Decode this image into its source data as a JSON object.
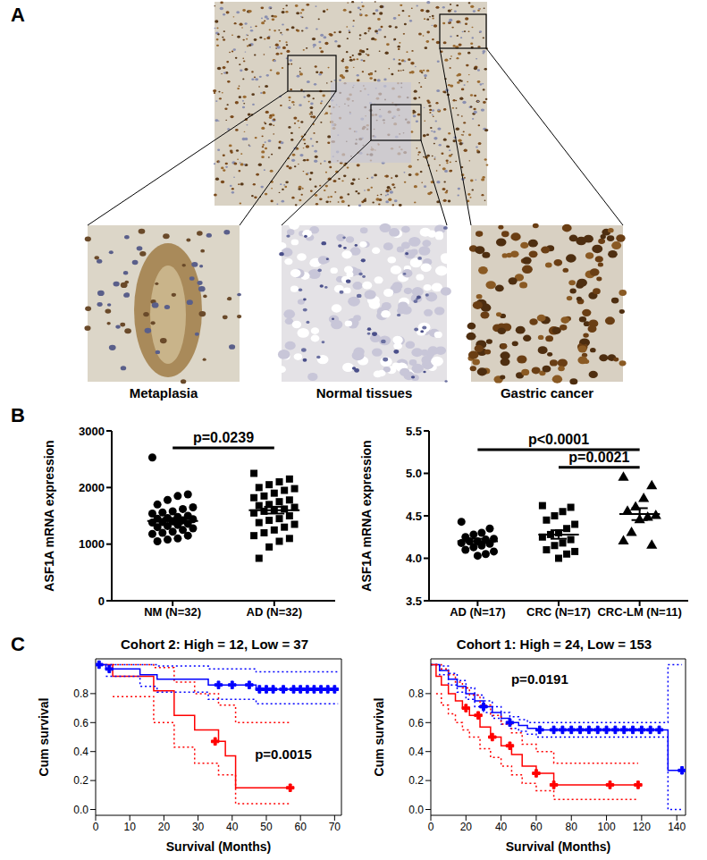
{
  "panel_a": {
    "label": "A",
    "insets": [
      "Metaplasia",
      "Normal tissues",
      "Gastric cancer"
    ]
  },
  "panel_b_label": "B",
  "panel_c_label": "C",
  "chart_data": [
    {
      "type": "dot_plot",
      "y_label": "ASF1A mRNA expression",
      "ylim": [
        0,
        3000
      ],
      "yticks": [
        0,
        1000,
        2000,
        3000
      ],
      "groups": [
        {
          "category": "NM (N=32)",
          "marker": "circle",
          "color": "#000000",
          "mean": 1410,
          "sem": 50,
          "values": [
            2530,
            1880,
            1850,
            1780,
            1700,
            1650,
            1620,
            1580,
            1560,
            1540,
            1500,
            1480,
            1460,
            1450,
            1440,
            1420,
            1400,
            1390,
            1380,
            1360,
            1340,
            1320,
            1300,
            1280,
            1250,
            1220,
            1200,
            1180,
            1150,
            1100,
            1080,
            1050
          ]
        },
        {
          "category": "AD (N=32)",
          "marker": "square",
          "color": "#000000",
          "mean": 1600,
          "sem": 60,
          "values": [
            2250,
            2150,
            2100,
            2050,
            2000,
            1980,
            1950,
            1900,
            1850,
            1820,
            1780,
            1750,
            1700,
            1680,
            1650,
            1620,
            1600,
            1580,
            1550,
            1500,
            1450,
            1420,
            1380,
            1350,
            1300,
            1250,
            1200,
            1150,
            1100,
            1050,
            950,
            750
          ]
        }
      ],
      "comparisons": [
        {
          "text": "p=0.0239",
          "groups": [
            0,
            1
          ],
          "y": 2700
        }
      ]
    },
    {
      "type": "dot_plot",
      "y_label": "ASF1A mRNA expression",
      "ylim": [
        3.5,
        5.5
      ],
      "yticks": [
        3.5,
        {
          "value": 4,
          "label": "4.0"
        },
        4.5,
        {
          "value": 5,
          "label": "5.0"
        },
        5.5
      ],
      "groups": [
        {
          "category": "AD (N=17)",
          "marker": "circle",
          "color": "#000000",
          "mean": 4.2,
          "sem": 0.03,
          "values": [
            4.43,
            4.35,
            4.3,
            4.28,
            4.25,
            4.23,
            4.22,
            4.2,
            4.2,
            4.18,
            4.17,
            4.15,
            4.13,
            4.1,
            4.08,
            4.05,
            4.03
          ]
        },
        {
          "category": "CRC (N=17)",
          "marker": "square",
          "color": "#000000",
          "mean": 4.28,
          "sem": 0.05,
          "values": [
            4.62,
            4.6,
            4.55,
            4.5,
            4.45,
            4.4,
            4.35,
            4.3,
            4.28,
            4.25,
            4.22,
            4.18,
            4.15,
            4.1,
            4.08,
            4.05,
            4.0
          ]
        },
        {
          "category": "CRC-LM (N=11)",
          "marker": "triangle",
          "color": "#000000",
          "mean": 4.52,
          "sem": 0.07,
          "values": [
            4.95,
            4.85,
            4.7,
            4.6,
            4.55,
            4.5,
            4.48,
            4.45,
            4.3,
            4.2,
            4.15
          ]
        }
      ],
      "comparisons": [
        {
          "text": "p<0.0001",
          "groups": [
            0,
            2
          ],
          "y": 5.28
        },
        {
          "text": "p=0.0021",
          "groups": [
            1,
            2
          ],
          "y": 5.07
        }
      ]
    },
    {
      "type": "step",
      "title": "Cohort 2: High = 12, Low = 37",
      "x_label": "Survival (Months)",
      "y_label": "Cum survival",
      "xlim": [
        0,
        72
      ],
      "xticks": [
        0,
        10,
        20,
        30,
        40,
        50,
        60,
        70
      ],
      "ylim": [
        -0.04,
        1.04
      ],
      "yticks": [
        {
          "value": 0,
          "label": "0.0"
        },
        0.2,
        0.4,
        0.6,
        0.8
      ],
      "annotations": [
        {
          "text": "p=0.0015",
          "x": 55,
          "y": 0.38
        }
      ],
      "series": [
        {
          "color": "#ff0000",
          "line_style": "solid",
          "x": [
            0,
            5,
            17,
            23,
            29,
            36,
            38,
            41,
            57
          ],
          "values": [
            1,
            0.92,
            0.82,
            0.65,
            0.55,
            0.47,
            0.37,
            0.15,
            0.15
          ]
        },
        {
          "color": "#ff0000",
          "line_style": "dotted",
          "x": [
            5,
            17,
            23,
            29,
            36,
            41,
            57
          ],
          "values": [
            1,
            0.98,
            0.88,
            0.8,
            0.72,
            0.6,
            0.6
          ]
        },
        {
          "color": "#ff0000",
          "line_style": "dotted",
          "x": [
            5,
            17,
            23,
            29,
            36,
            41,
            57
          ],
          "values": [
            0.78,
            0.6,
            0.43,
            0.32,
            0.24,
            0.04,
            0.04
          ]
        },
        {
          "color": "#0000ff",
          "line_style": "solid",
          "x": [
            0,
            3,
            13,
            18,
            33,
            47,
            71
          ],
          "values": [
            1,
            0.97,
            0.93,
            0.9,
            0.86,
            0.83,
            0.83
          ]
        },
        {
          "color": "#0000ff",
          "line_style": "dotted",
          "x": [
            3,
            13,
            18,
            33,
            47,
            71
          ],
          "values": [
            1,
            1,
            0.99,
            0.97,
            0.95,
            0.95
          ]
        },
        {
          "color": "#0000ff",
          "line_style": "dotted",
          "x": [
            3,
            13,
            18,
            33,
            47,
            71
          ],
          "values": [
            0.92,
            0.85,
            0.81,
            0.76,
            0.73,
            0.73
          ]
        },
        {
          "type": "scatter",
          "marker": "cross",
          "color": "#0000ff",
          "x": [
            1,
            4,
            36,
            40,
            45,
            48,
            50,
            52,
            55,
            58,
            60,
            62,
            64,
            66,
            68,
            70
          ],
          "values": [
            1,
            0.97,
            0.86,
            0.86,
            0.86,
            0.83,
            0.83,
            0.83,
            0.83,
            0.83,
            0.83,
            0.83,
            0.83,
            0.83,
            0.83,
            0.83
          ]
        },
        {
          "type": "scatter",
          "marker": "cross",
          "color": "#ff0000",
          "x": [
            35,
            57
          ],
          "values": [
            0.47,
            0.15
          ]
        }
      ]
    },
    {
      "type": "step",
      "title": "Cohort 1: High = 24, Low = 153",
      "x_label": "Survival (Months)",
      "y_label": "Cum survival",
      "xlim": [
        0,
        145
      ],
      "xticks": [
        0,
        20,
        40,
        60,
        80,
        100,
        120,
        140
      ],
      "ylim": [
        -0.04,
        1.04
      ],
      "yticks": [
        {
          "value": 0,
          "label": "0.0"
        },
        0.2,
        0.4,
        0.6,
        0.8
      ],
      "annotations": [
        {
          "text": "p=0.0191",
          "x": 62,
          "y": 0.9
        }
      ],
      "series": [
        {
          "color": "#0000ff",
          "line_style": "solid",
          "x": [
            0,
            5,
            10,
            15,
            20,
            25,
            30,
            35,
            40,
            45,
            50,
            55,
            60,
            135,
            143
          ],
          "values": [
            1,
            0.96,
            0.9,
            0.85,
            0.8,
            0.75,
            0.71,
            0.67,
            0.63,
            0.6,
            0.58,
            0.56,
            0.55,
            0.27,
            0.27
          ]
        },
        {
          "color": "#0000ff",
          "line_style": "dotted",
          "x": [
            0,
            5,
            10,
            15,
            20,
            25,
            30,
            35,
            40,
            45,
            50,
            55,
            60,
            135,
            143
          ],
          "values": [
            1,
            0.99,
            0.94,
            0.89,
            0.84,
            0.79,
            0.75,
            0.71,
            0.67,
            0.64,
            0.62,
            0.6,
            0.6,
            1,
            1
          ]
        },
        {
          "color": "#0000ff",
          "line_style": "dotted",
          "x": [
            0,
            5,
            10,
            15,
            20,
            25,
            30,
            35,
            40,
            45,
            50,
            55,
            60,
            135,
            143
          ],
          "values": [
            1,
            0.93,
            0.86,
            0.81,
            0.76,
            0.71,
            0.67,
            0.63,
            0.59,
            0.56,
            0.54,
            0.52,
            0.5,
            0,
            0
          ]
        },
        {
          "color": "#ff0000",
          "line_style": "solid",
          "x": [
            0,
            3,
            6,
            10,
            14,
            18,
            22,
            28,
            34,
            40,
            46,
            52,
            60,
            70,
            118
          ],
          "values": [
            1,
            0.92,
            0.86,
            0.8,
            0.75,
            0.7,
            0.65,
            0.57,
            0.5,
            0.44,
            0.38,
            0.3,
            0.25,
            0.17,
            0.17
          ]
        },
        {
          "color": "#ff0000",
          "line_style": "dotted",
          "x": [
            3,
            6,
            10,
            14,
            18,
            22,
            28,
            34,
            40,
            46,
            52,
            60,
            70,
            118
          ],
          "values": [
            1,
            0.97,
            0.93,
            0.88,
            0.84,
            0.79,
            0.72,
            0.65,
            0.59,
            0.53,
            0.45,
            0.4,
            0.32,
            0.32
          ]
        },
        {
          "color": "#ff0000",
          "line_style": "dotted",
          "x": [
            3,
            6,
            10,
            14,
            18,
            22,
            28,
            34,
            40,
            46,
            52,
            60,
            70,
            118
          ],
          "values": [
            0.8,
            0.72,
            0.66,
            0.6,
            0.55,
            0.5,
            0.42,
            0.36,
            0.3,
            0.24,
            0.18,
            0.13,
            0.07,
            0.07
          ]
        },
        {
          "type": "scatter",
          "marker": "cross",
          "color": "#0000ff",
          "x": [
            30,
            45,
            62,
            70,
            75,
            80,
            85,
            90,
            95,
            100,
            105,
            110,
            115,
            120,
            125,
            130,
            143
          ],
          "values": [
            0.71,
            0.6,
            0.55,
            0.55,
            0.55,
            0.55,
            0.55,
            0.55,
            0.55,
            0.55,
            0.55,
            0.55,
            0.55,
            0.55,
            0.55,
            0.55,
            0.27
          ]
        },
        {
          "type": "scatter",
          "marker": "cross",
          "color": "#ff0000",
          "x": [
            20,
            27,
            35,
            45,
            60,
            70,
            102,
            118
          ],
          "values": [
            0.7,
            0.65,
            0.5,
            0.44,
            0.25,
            0.17,
            0.17,
            0.17
          ]
        }
      ]
    }
  ]
}
